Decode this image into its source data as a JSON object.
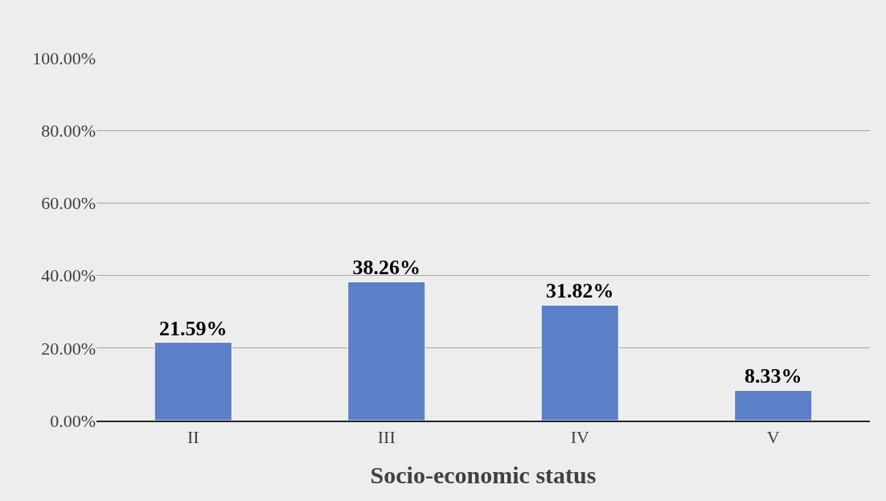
{
  "chart_data": {
    "type": "bar",
    "xlabel": "Socio-economic status",
    "categories": [
      "II",
      "III",
      "IV",
      "V"
    ],
    "values": [
      21.59,
      38.26,
      31.82,
      8.33
    ],
    "value_labels": [
      "21.59%",
      "38.26%",
      "31.82%",
      "8.33%"
    ],
    "color": "#5b80c8",
    "ylim": [
      0,
      100
    ],
    "yticks": [
      {
        "value": 0,
        "label": "0.00%"
      },
      {
        "value": 20,
        "label": "20.00%"
      },
      {
        "value": 40,
        "label": "40.00%"
      },
      {
        "value": 60,
        "label": "60.00%"
      },
      {
        "value": 80,
        "label": "80.00%"
      },
      {
        "value": 100,
        "label": "100.00%"
      }
    ],
    "grid": "y"
  }
}
